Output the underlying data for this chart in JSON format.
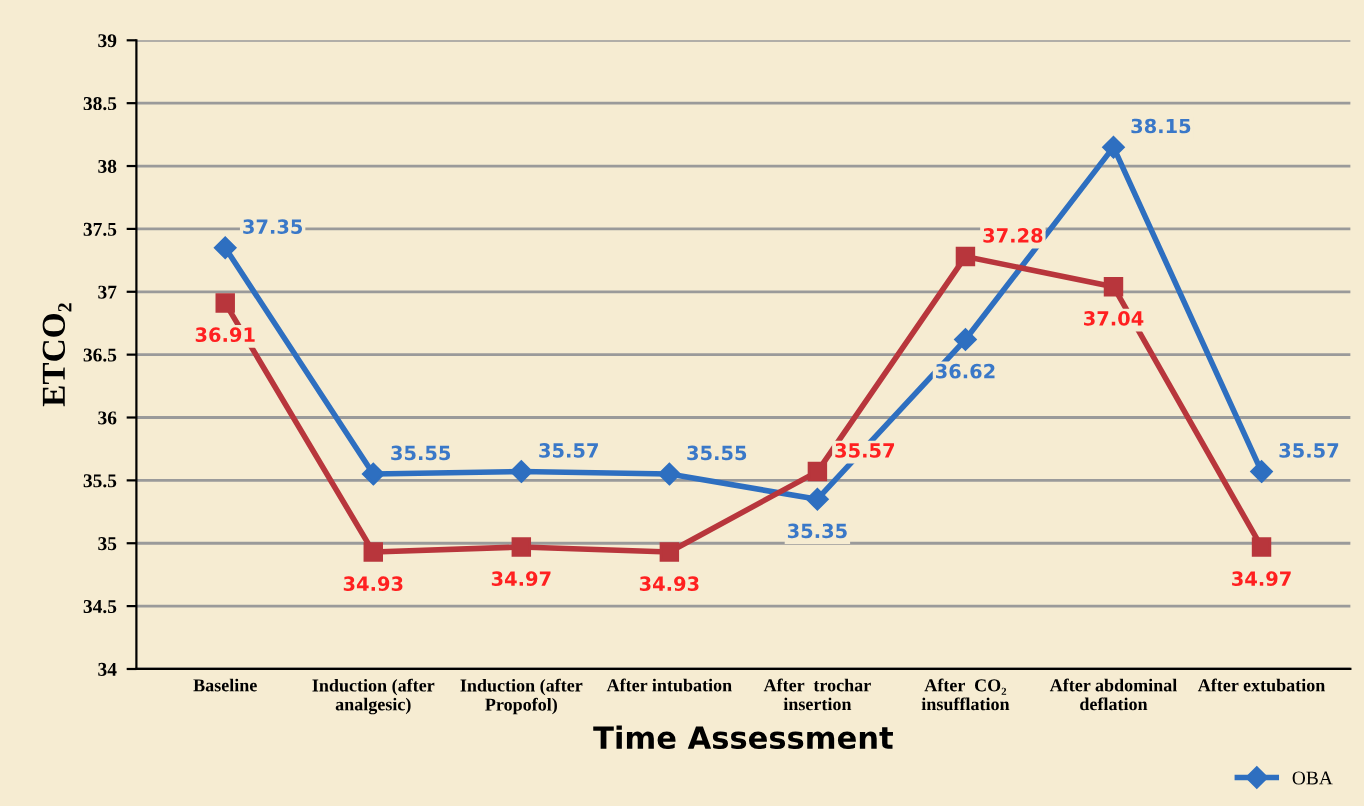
{
  "chart_data": {
    "type": "line",
    "xlabel": "Time Assessment",
    "ylabel": "ETCO₂",
    "categories": [
      "Baseline",
      "Induction (after\nanalgesic)",
      "Induction (after\nPropofol)",
      "After intubation",
      "After  trochar\ninsertion",
      "After  CO₂\ninsufflation",
      "After abdominal\ndeflation",
      "After extubation"
    ],
    "series": [
      {
        "name": "OBA",
        "color": "#2e6fc0",
        "marker": "diamond",
        "values": [
          37.35,
          35.55,
          35.57,
          35.55,
          35.35,
          36.62,
          38.15,
          35.57
        ]
      },
      {
        "color": "#b8363c",
        "marker": "square",
        "values": [
          36.91,
          34.93,
          34.97,
          34.93,
          35.57,
          37.28,
          37.04,
          34.97
        ]
      }
    ],
    "ylim": [
      34,
      39
    ],
    "yticks": [
      34,
      34.5,
      35,
      35.5,
      36,
      36.5,
      37,
      37.5,
      38,
      38.5,
      39
    ],
    "grid": "y",
    "legend": "bottom right",
    "data_labels": true,
    "line_style": "solid"
  }
}
